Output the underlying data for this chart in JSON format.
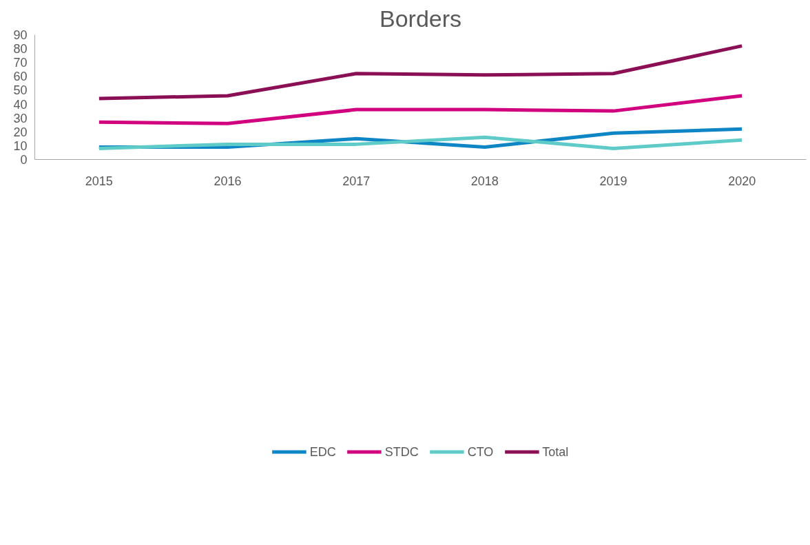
{
  "chart_data": {
    "type": "line",
    "title": "Borders",
    "categories": [
      "2015",
      "2016",
      "2017",
      "2018",
      "2019",
      "2020"
    ],
    "series": [
      {
        "name": "EDC",
        "color": "#0e85c4",
        "values": [
          9,
          9,
          15,
          9,
          19,
          22
        ]
      },
      {
        "name": "STDC",
        "color": "#d1007f",
        "values": [
          27,
          26,
          36,
          36,
          35,
          46
        ]
      },
      {
        "name": "CTO",
        "color": "#5ecbc8",
        "values": [
          8,
          11,
          11,
          16,
          8,
          14
        ]
      },
      {
        "name": "Total",
        "color": "#8b0f55",
        "values": [
          44,
          46,
          62,
          61,
          62,
          82
        ]
      }
    ],
    "ylim": [
      0,
      90
    ],
    "yticks": [
      0,
      10,
      20,
      30,
      40,
      50,
      60,
      70,
      80,
      90
    ],
    "grid": false,
    "legend": "bottom",
    "marker": "none",
    "line_style": "solid"
  }
}
